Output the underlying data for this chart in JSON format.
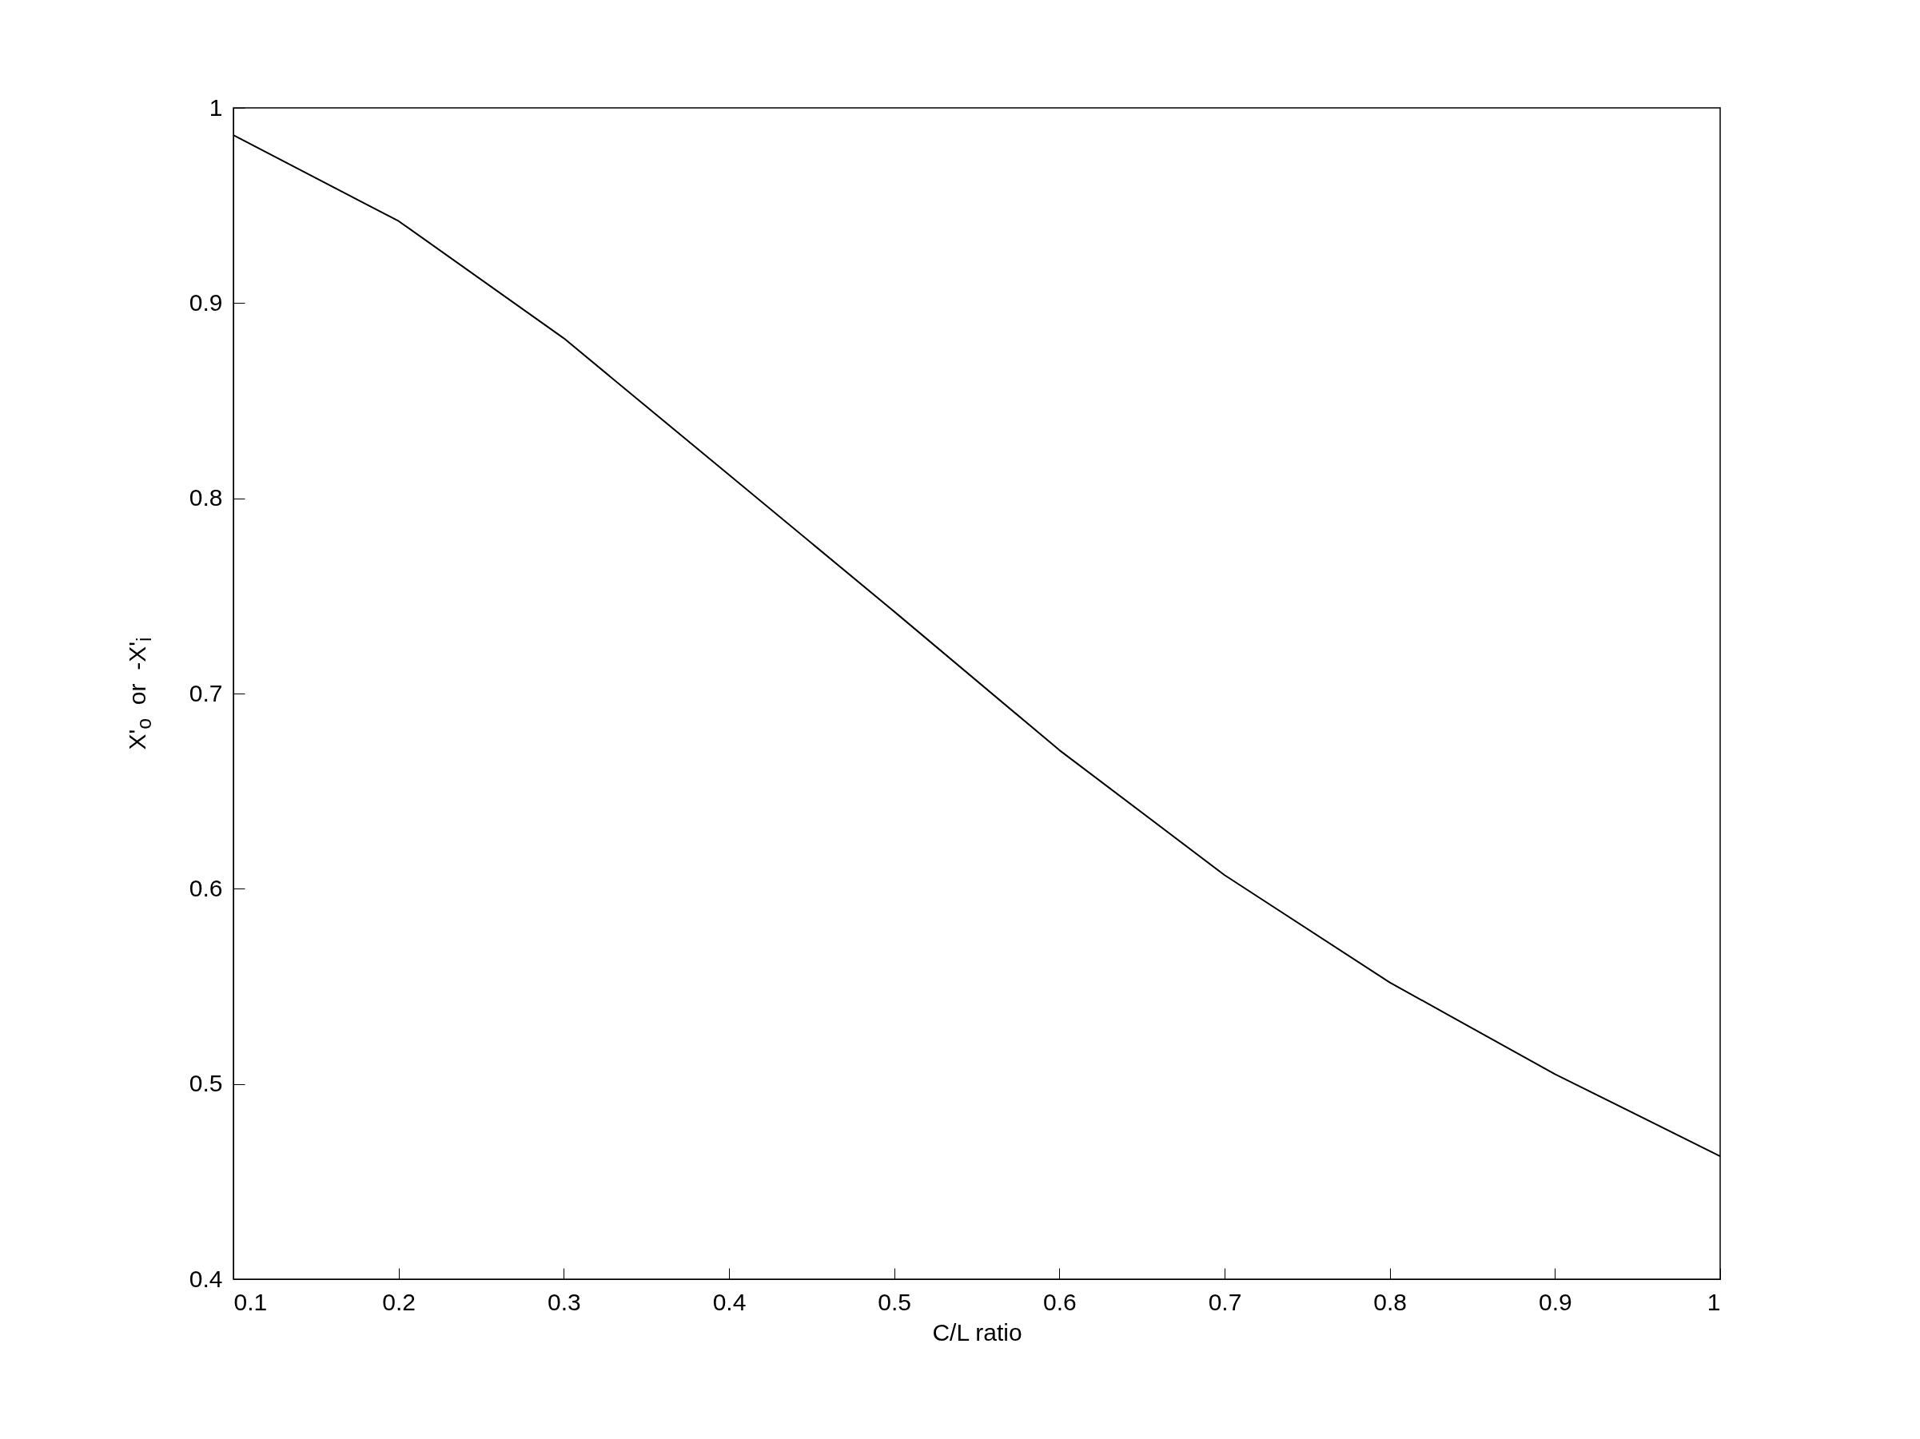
{
  "chart_data": {
    "type": "line",
    "xlabel": "C/L ratio",
    "ylabel": "X'$_{o}$  or  -X'$_{i}$",
    "x": [
      0.1,
      0.2,
      0.3,
      0.4,
      0.5,
      0.6,
      0.7,
      0.8,
      0.9,
      1.0
    ],
    "series": [
      {
        "color": "#000000",
        "values": [
          0.986,
          0.942,
          0.882,
          0.812,
          0.742,
          0.671,
          0.607,
          0.552,
          0.505,
          0.463
        ]
      }
    ],
    "xlim": [
      0.1,
      1
    ],
    "xticks": [
      0.1,
      0.2,
      0.3,
      0.4,
      0.5,
      0.6,
      0.7,
      0.8,
      0.9,
      1
    ],
    "ylim": [
      0.4,
      1
    ],
    "yticks": [
      0.4,
      0.5,
      0.6,
      0.7,
      0.8,
      0.9,
      1
    ],
    "grid": false,
    "marker": "none",
    "line_style": "solid"
  }
}
